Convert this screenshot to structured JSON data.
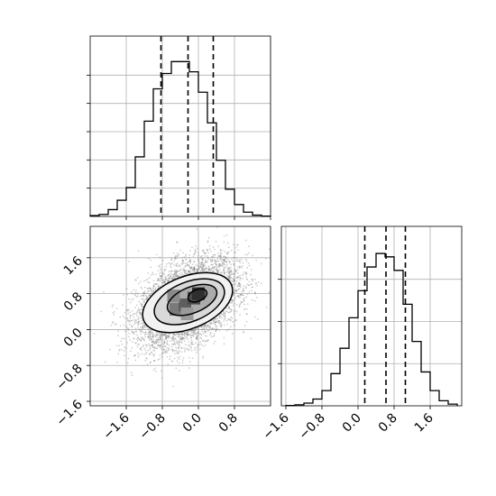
{
  "chart_data": [
    {
      "panel": "top-left",
      "type": "histogram",
      "title": "",
      "xlabel": "",
      "ylabel": "",
      "xlim": [
        -2.4,
        1.6
      ],
      "ylim": [
        0,
        1.0
      ],
      "x_tick_labels_shown": false,
      "y_tick_labels_shown": false,
      "bin_edges": [
        -2.4,
        -2.2,
        -2.0,
        -1.8,
        -1.6,
        -1.4,
        -1.2,
        -1.0,
        -0.8,
        -0.6,
        -0.4,
        -0.2,
        0.0,
        0.2,
        0.4,
        0.6,
        0.8,
        1.0,
        1.2,
        1.4,
        1.6
      ],
      "relative_counts": [
        0.005,
        0.012,
        0.04,
        0.095,
        0.17,
        0.35,
        0.56,
        0.75,
        0.84,
        0.91,
        0.91,
        0.85,
        0.73,
        0.55,
        0.33,
        0.16,
        0.07,
        0.025,
        0.008,
        0.002
      ],
      "quantile_lines": [
        -0.83,
        -0.23,
        0.33
      ]
    },
    {
      "panel": "bottom-left",
      "type": "scatter",
      "title": "",
      "xlabel": "",
      "ylabel": "",
      "xlim": [
        -2.4,
        1.6
      ],
      "ylim": [
        -1.7,
        2.3
      ],
      "xticks": [
        "−1.6",
        "−0.8",
        "0.0",
        "0.8"
      ],
      "yticks": [
        "−1.6",
        "−0.8",
        "0.0",
        "0.8",
        "1.6"
      ],
      "points": {
        "distribution": "bivariate normal",
        "mean": [
          -0.24,
          0.6
        ],
        "sd": [
          0.55,
          0.48
        ],
        "correlation": 0.42
      },
      "contours": [
        {
          "center": [
            -0.24,
            0.6
          ],
          "rx": 1.05,
          "ry": 0.58,
          "angle_deg": 22
        },
        {
          "center": [
            -0.2,
            0.62
          ],
          "rx": 0.82,
          "ry": 0.44,
          "angle_deg": 22
        },
        {
          "center": [
            -0.14,
            0.66
          ],
          "rx": 0.58,
          "ry": 0.29,
          "angle_deg": 22
        },
        {
          "center": [
            -0.02,
            0.76
          ],
          "rx": 0.22,
          "ry": 0.13,
          "angle_deg": 22
        }
      ],
      "density_shading": "greyscale, darkest near (0.0, 0.8)"
    },
    {
      "panel": "bottom-right",
      "type": "histogram",
      "title": "",
      "xlabel": "",
      "ylabel": "",
      "xlim": [
        -1.7,
        2.3
      ],
      "ylim": [
        0,
        1.0
      ],
      "xticks": [
        "−1.6",
        "−0.8",
        "0.0",
        "0.8",
        "1.6"
      ],
      "y_tick_labels_shown": false,
      "bin_edges": [
        -1.6,
        -1.4,
        -1.2,
        -1.0,
        -0.8,
        -0.6,
        -0.4,
        -0.2,
        0.0,
        0.2,
        0.4,
        0.6,
        0.8,
        1.0,
        1.2,
        1.4,
        1.6,
        1.8,
        2.0,
        2.2
      ],
      "relative_counts": [
        0.002,
        0.006,
        0.016,
        0.04,
        0.09,
        0.19,
        0.34,
        0.52,
        0.68,
        0.82,
        0.9,
        0.88,
        0.8,
        0.6,
        0.38,
        0.2,
        0.09,
        0.03,
        0.01
      ],
      "quantile_lines": [
        0.15,
        0.62,
        1.05
      ]
    }
  ]
}
